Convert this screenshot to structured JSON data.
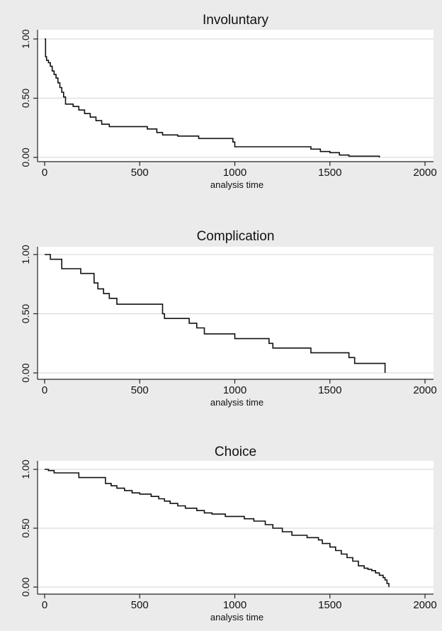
{
  "chart_data": [
    {
      "type": "line",
      "step": true,
      "title": "Involuntary",
      "xlabel": "analysis time",
      "ylabel": "",
      "xlim": [
        0,
        2000
      ],
      "ylim": [
        0,
        1
      ],
      "xticks": [
        "0",
        "500",
        "1000",
        "1500",
        "2000"
      ],
      "yticks": [
        "0.00",
        "0.50",
        "1.00"
      ],
      "grid": true,
      "series": [
        {
          "x": [
            0,
            5,
            10,
            20,
            30,
            40,
            50,
            60,
            70,
            80,
            90,
            100,
            110,
            125,
            150,
            180,
            210,
            240,
            270,
            300,
            340,
            420,
            540,
            590,
            620,
            700,
            810,
            990,
            1000,
            1400,
            1450,
            1500,
            1550,
            1600,
            1760
          ],
          "y": [
            1.0,
            0.85,
            0.82,
            0.8,
            0.77,
            0.73,
            0.7,
            0.67,
            0.63,
            0.59,
            0.55,
            0.51,
            0.45,
            0.45,
            0.43,
            0.4,
            0.37,
            0.34,
            0.31,
            0.28,
            0.26,
            0.26,
            0.24,
            0.21,
            0.19,
            0.18,
            0.16,
            0.13,
            0.09,
            0.07,
            0.05,
            0.04,
            0.02,
            0.01,
            0.0
          ]
        }
      ]
    },
    {
      "type": "line",
      "step": true,
      "title": "Complication",
      "xlabel": "analysis time",
      "ylabel": "",
      "xlim": [
        0,
        2000
      ],
      "ylim": [
        0,
        1
      ],
      "xticks": [
        "0",
        "500",
        "1000",
        "1500",
        "2000"
      ],
      "yticks": [
        "0.00",
        "0.50",
        "1.00"
      ],
      "grid": true,
      "series": [
        {
          "x": [
            0,
            30,
            90,
            190,
            260,
            280,
            310,
            340,
            380,
            620,
            630,
            760,
            800,
            840,
            1000,
            1180,
            1200,
            1400,
            1600,
            1630,
            1790
          ],
          "y": [
            1.0,
            0.96,
            0.88,
            0.84,
            0.76,
            0.71,
            0.67,
            0.63,
            0.58,
            0.5,
            0.46,
            0.42,
            0.38,
            0.33,
            0.29,
            0.25,
            0.21,
            0.17,
            0.13,
            0.08,
            0.0
          ]
        }
      ]
    },
    {
      "type": "line",
      "step": true,
      "title": "Choice",
      "xlabel": "analysis time",
      "ylabel": "",
      "xlim": [
        0,
        2000
      ],
      "ylim": [
        0,
        1
      ],
      "xticks": [
        "0",
        "500",
        "1000",
        "1500",
        "2000"
      ],
      "yticks": [
        "0.00",
        "0.50",
        "1.00"
      ],
      "grid": true,
      "series": [
        {
          "x": [
            0,
            20,
            50,
            180,
            320,
            350,
            380,
            420,
            460,
            500,
            560,
            600,
            630,
            660,
            700,
            740,
            800,
            840,
            880,
            950,
            1050,
            1100,
            1160,
            1200,
            1250,
            1300,
            1380,
            1440,
            1460,
            1500,
            1530,
            1560,
            1590,
            1620,
            1650,
            1680,
            1700,
            1720,
            1740,
            1760,
            1780,
            1790,
            1800,
            1810
          ],
          "y": [
            1.0,
            0.99,
            0.97,
            0.93,
            0.88,
            0.86,
            0.84,
            0.82,
            0.8,
            0.79,
            0.77,
            0.75,
            0.73,
            0.71,
            0.69,
            0.67,
            0.65,
            0.63,
            0.62,
            0.6,
            0.58,
            0.56,
            0.53,
            0.5,
            0.47,
            0.44,
            0.42,
            0.4,
            0.37,
            0.34,
            0.31,
            0.28,
            0.25,
            0.22,
            0.18,
            0.16,
            0.15,
            0.14,
            0.12,
            0.1,
            0.08,
            0.06,
            0.03,
            0.0
          ]
        }
      ]
    }
  ]
}
